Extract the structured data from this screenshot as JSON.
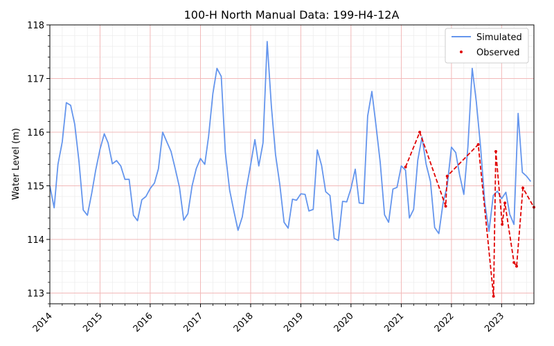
{
  "chart_data": {
    "type": "line",
    "title": "100-H North Manual Data: 199-H4-12A",
    "xlabel": "",
    "ylabel": "Water Level (m)",
    "xlim": [
      "2014-01-01",
      "2023-08-24"
    ],
    "ylim": [
      112.8,
      118.0
    ],
    "x_tick_labels": [
      "2014",
      "2015",
      "2016",
      "2017",
      "2018",
      "2019",
      "2020",
      "2021",
      "2022",
      "2023"
    ],
    "y_tick_labels": [
      "113",
      "114",
      "115",
      "116",
      "117",
      "118"
    ],
    "grid": true,
    "legend_position": "top-right",
    "colors": {
      "simulated": "#6495ED",
      "observed": "#E00000",
      "major_grid": "#F2B8B8",
      "minor_grid": "#EDEDED"
    },
    "series": [
      {
        "name": "Simulated",
        "style": "line",
        "points": [
          [
            "2014-01-01",
            115.0
          ],
          [
            "2014-02-01",
            114.59
          ],
          [
            "2014-03-01",
            115.4
          ],
          [
            "2014-04-01",
            115.82
          ],
          [
            "2014-05-01",
            116.55
          ],
          [
            "2014-06-01",
            116.5
          ],
          [
            "2014-07-01",
            116.15
          ],
          [
            "2014-08-01",
            115.45
          ],
          [
            "2014-09-01",
            114.55
          ],
          [
            "2014-10-01",
            114.45
          ],
          [
            "2014-11-01",
            114.85
          ],
          [
            "2014-12-01",
            115.3
          ],
          [
            "2015-01-01",
            115.68
          ],
          [
            "2015-02-01",
            115.97
          ],
          [
            "2015-03-01",
            115.8
          ],
          [
            "2015-04-01",
            115.41
          ],
          [
            "2015-05-01",
            115.47
          ],
          [
            "2015-06-01",
            115.37
          ],
          [
            "2015-07-01",
            115.12
          ],
          [
            "2015-08-01",
            115.12
          ],
          [
            "2015-09-01",
            114.45
          ],
          [
            "2015-10-01",
            114.35
          ],
          [
            "2015-11-01",
            114.74
          ],
          [
            "2015-12-01",
            114.8
          ],
          [
            "2016-01-01",
            114.95
          ],
          [
            "2016-02-01",
            115.05
          ],
          [
            "2016-03-01",
            115.32
          ],
          [
            "2016-04-01",
            116.0
          ],
          [
            "2016-05-01",
            115.82
          ],
          [
            "2016-06-01",
            115.64
          ],
          [
            "2016-07-01",
            115.32
          ],
          [
            "2016-08-01",
            114.97
          ],
          [
            "2016-09-01",
            114.36
          ],
          [
            "2016-10-01",
            114.48
          ],
          [
            "2016-11-01",
            115.0
          ],
          [
            "2016-12-01",
            115.32
          ],
          [
            "2017-01-01",
            115.51
          ],
          [
            "2017-02-01",
            115.4
          ],
          [
            "2017-03-01",
            115.92
          ],
          [
            "2017-04-01",
            116.72
          ],
          [
            "2017-05-01",
            117.19
          ],
          [
            "2017-06-01",
            117.04
          ],
          [
            "2017-07-01",
            115.62
          ],
          [
            "2017-08-01",
            114.92
          ],
          [
            "2017-09-01",
            114.53
          ],
          [
            "2017-10-01",
            114.17
          ],
          [
            "2017-11-01",
            114.42
          ],
          [
            "2017-12-01",
            114.95
          ],
          [
            "2018-01-01",
            115.4
          ],
          [
            "2018-02-01",
            115.86
          ],
          [
            "2018-03-01",
            115.37
          ],
          [
            "2018-04-01",
            115.8
          ],
          [
            "2018-05-01",
            117.69
          ],
          [
            "2018-06-01",
            116.48
          ],
          [
            "2018-07-01",
            115.58
          ],
          [
            "2018-08-01",
            115.03
          ],
          [
            "2018-09-01",
            114.32
          ],
          [
            "2018-10-01",
            114.21
          ],
          [
            "2018-11-01",
            114.75
          ],
          [
            "2018-12-01",
            114.73
          ],
          [
            "2019-01-01",
            114.85
          ],
          [
            "2019-02-01",
            114.84
          ],
          [
            "2019-03-01",
            114.53
          ],
          [
            "2019-04-01",
            114.56
          ],
          [
            "2019-05-01",
            115.67
          ],
          [
            "2019-06-01",
            115.38
          ],
          [
            "2019-07-01",
            114.89
          ],
          [
            "2019-08-01",
            114.82
          ],
          [
            "2019-09-01",
            114.02
          ],
          [
            "2019-10-01",
            113.98
          ],
          [
            "2019-11-01",
            114.71
          ],
          [
            "2019-12-01",
            114.7
          ],
          [
            "2020-01-01",
            114.95
          ],
          [
            "2020-02-01",
            115.31
          ],
          [
            "2020-03-01",
            114.68
          ],
          [
            "2020-04-01",
            114.67
          ],
          [
            "2020-05-01",
            116.3
          ],
          [
            "2020-06-01",
            116.76
          ],
          [
            "2020-07-01",
            116.12
          ],
          [
            "2020-08-01",
            115.43
          ],
          [
            "2020-09-01",
            114.46
          ],
          [
            "2020-10-01",
            114.32
          ],
          [
            "2020-11-01",
            114.94
          ],
          [
            "2020-12-01",
            114.97
          ],
          [
            "2021-01-01",
            115.37
          ],
          [
            "2021-02-01",
            115.29
          ],
          [
            "2021-03-01",
            114.4
          ],
          [
            "2021-04-01",
            114.56
          ],
          [
            "2021-05-01",
            115.48
          ],
          [
            "2021-06-01",
            115.91
          ],
          [
            "2021-07-01",
            115.4
          ],
          [
            "2021-08-01",
            115.08
          ],
          [
            "2021-09-01",
            114.22
          ],
          [
            "2021-10-01",
            114.11
          ],
          [
            "2021-11-01",
            114.68
          ],
          [
            "2021-12-01",
            115.0
          ],
          [
            "2022-01-01",
            115.72
          ],
          [
            "2022-02-01",
            115.62
          ],
          [
            "2022-03-01",
            115.21
          ],
          [
            "2022-04-01",
            114.84
          ],
          [
            "2022-05-01",
            115.73
          ],
          [
            "2022-06-01",
            117.19
          ],
          [
            "2022-07-01",
            116.57
          ],
          [
            "2022-08-01",
            115.72
          ],
          [
            "2022-09-01",
            114.68
          ],
          [
            "2022-10-01",
            114.15
          ],
          [
            "2022-11-01",
            114.82
          ],
          [
            "2022-12-01",
            114.9
          ],
          [
            "2023-01-01",
            114.76
          ],
          [
            "2023-02-01",
            114.88
          ],
          [
            "2023-03-01",
            114.47
          ],
          [
            "2023-04-01",
            114.28
          ],
          [
            "2023-05-01",
            116.35
          ],
          [
            "2023-06-01",
            115.25
          ],
          [
            "2023-07-01",
            115.18
          ],
          [
            "2023-08-01",
            115.08
          ]
        ]
      },
      {
        "name": "Observed",
        "style": "dashed-markers",
        "points": [
          [
            "2021-02-01",
            115.35
          ],
          [
            "2021-05-15",
            116.0
          ],
          [
            "2021-11-20",
            114.62
          ],
          [
            "2021-12-01",
            115.18
          ],
          [
            "2022-07-15",
            115.77
          ],
          [
            "2022-11-03",
            112.94
          ],
          [
            "2022-11-20",
            115.64
          ],
          [
            "2023-01-05",
            114.28
          ],
          [
            "2023-01-25",
            114.68
          ],
          [
            "2023-04-01",
            113.57
          ],
          [
            "2023-04-20",
            113.5
          ],
          [
            "2023-06-05",
            114.96
          ],
          [
            "2023-08-24",
            114.6
          ]
        ]
      }
    ]
  }
}
